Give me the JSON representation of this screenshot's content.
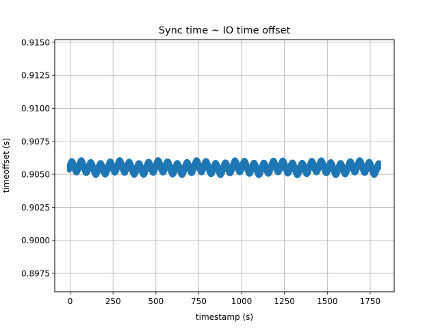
{
  "chart_data": {
    "type": "scatter",
    "title": "Sync time ~ IO time offset",
    "xlabel": "timestamp (s)",
    "ylabel": "timeoffset (s)",
    "xlim": [
      -90,
      1890
    ],
    "ylim": [
      0.8961,
      0.9152
    ],
    "x_ticks": [
      0,
      250,
      500,
      750,
      1000,
      1250,
      1500,
      1750
    ],
    "x_tick_labels": [
      "0",
      "250",
      "500",
      "750",
      "1000",
      "1250",
      "1500",
      "1750"
    ],
    "y_ticks": [
      0.8975,
      0.9,
      0.9025,
      0.905,
      0.9075,
      0.91,
      0.9125,
      0.915
    ],
    "y_tick_labels": [
      "0.8975",
      "0.9000",
      "0.9025",
      "0.9050",
      "0.9075",
      "0.9100",
      "0.9125",
      "0.9150"
    ],
    "grid": true,
    "x_range": [
      -5,
      1800
    ],
    "baseline": 0.9055,
    "band_low": 0.905,
    "band_high": 0.9061,
    "oscillation_period_s": 56,
    "marker_color": "#1f77b4",
    "grid_color": "#b0b0b0"
  }
}
